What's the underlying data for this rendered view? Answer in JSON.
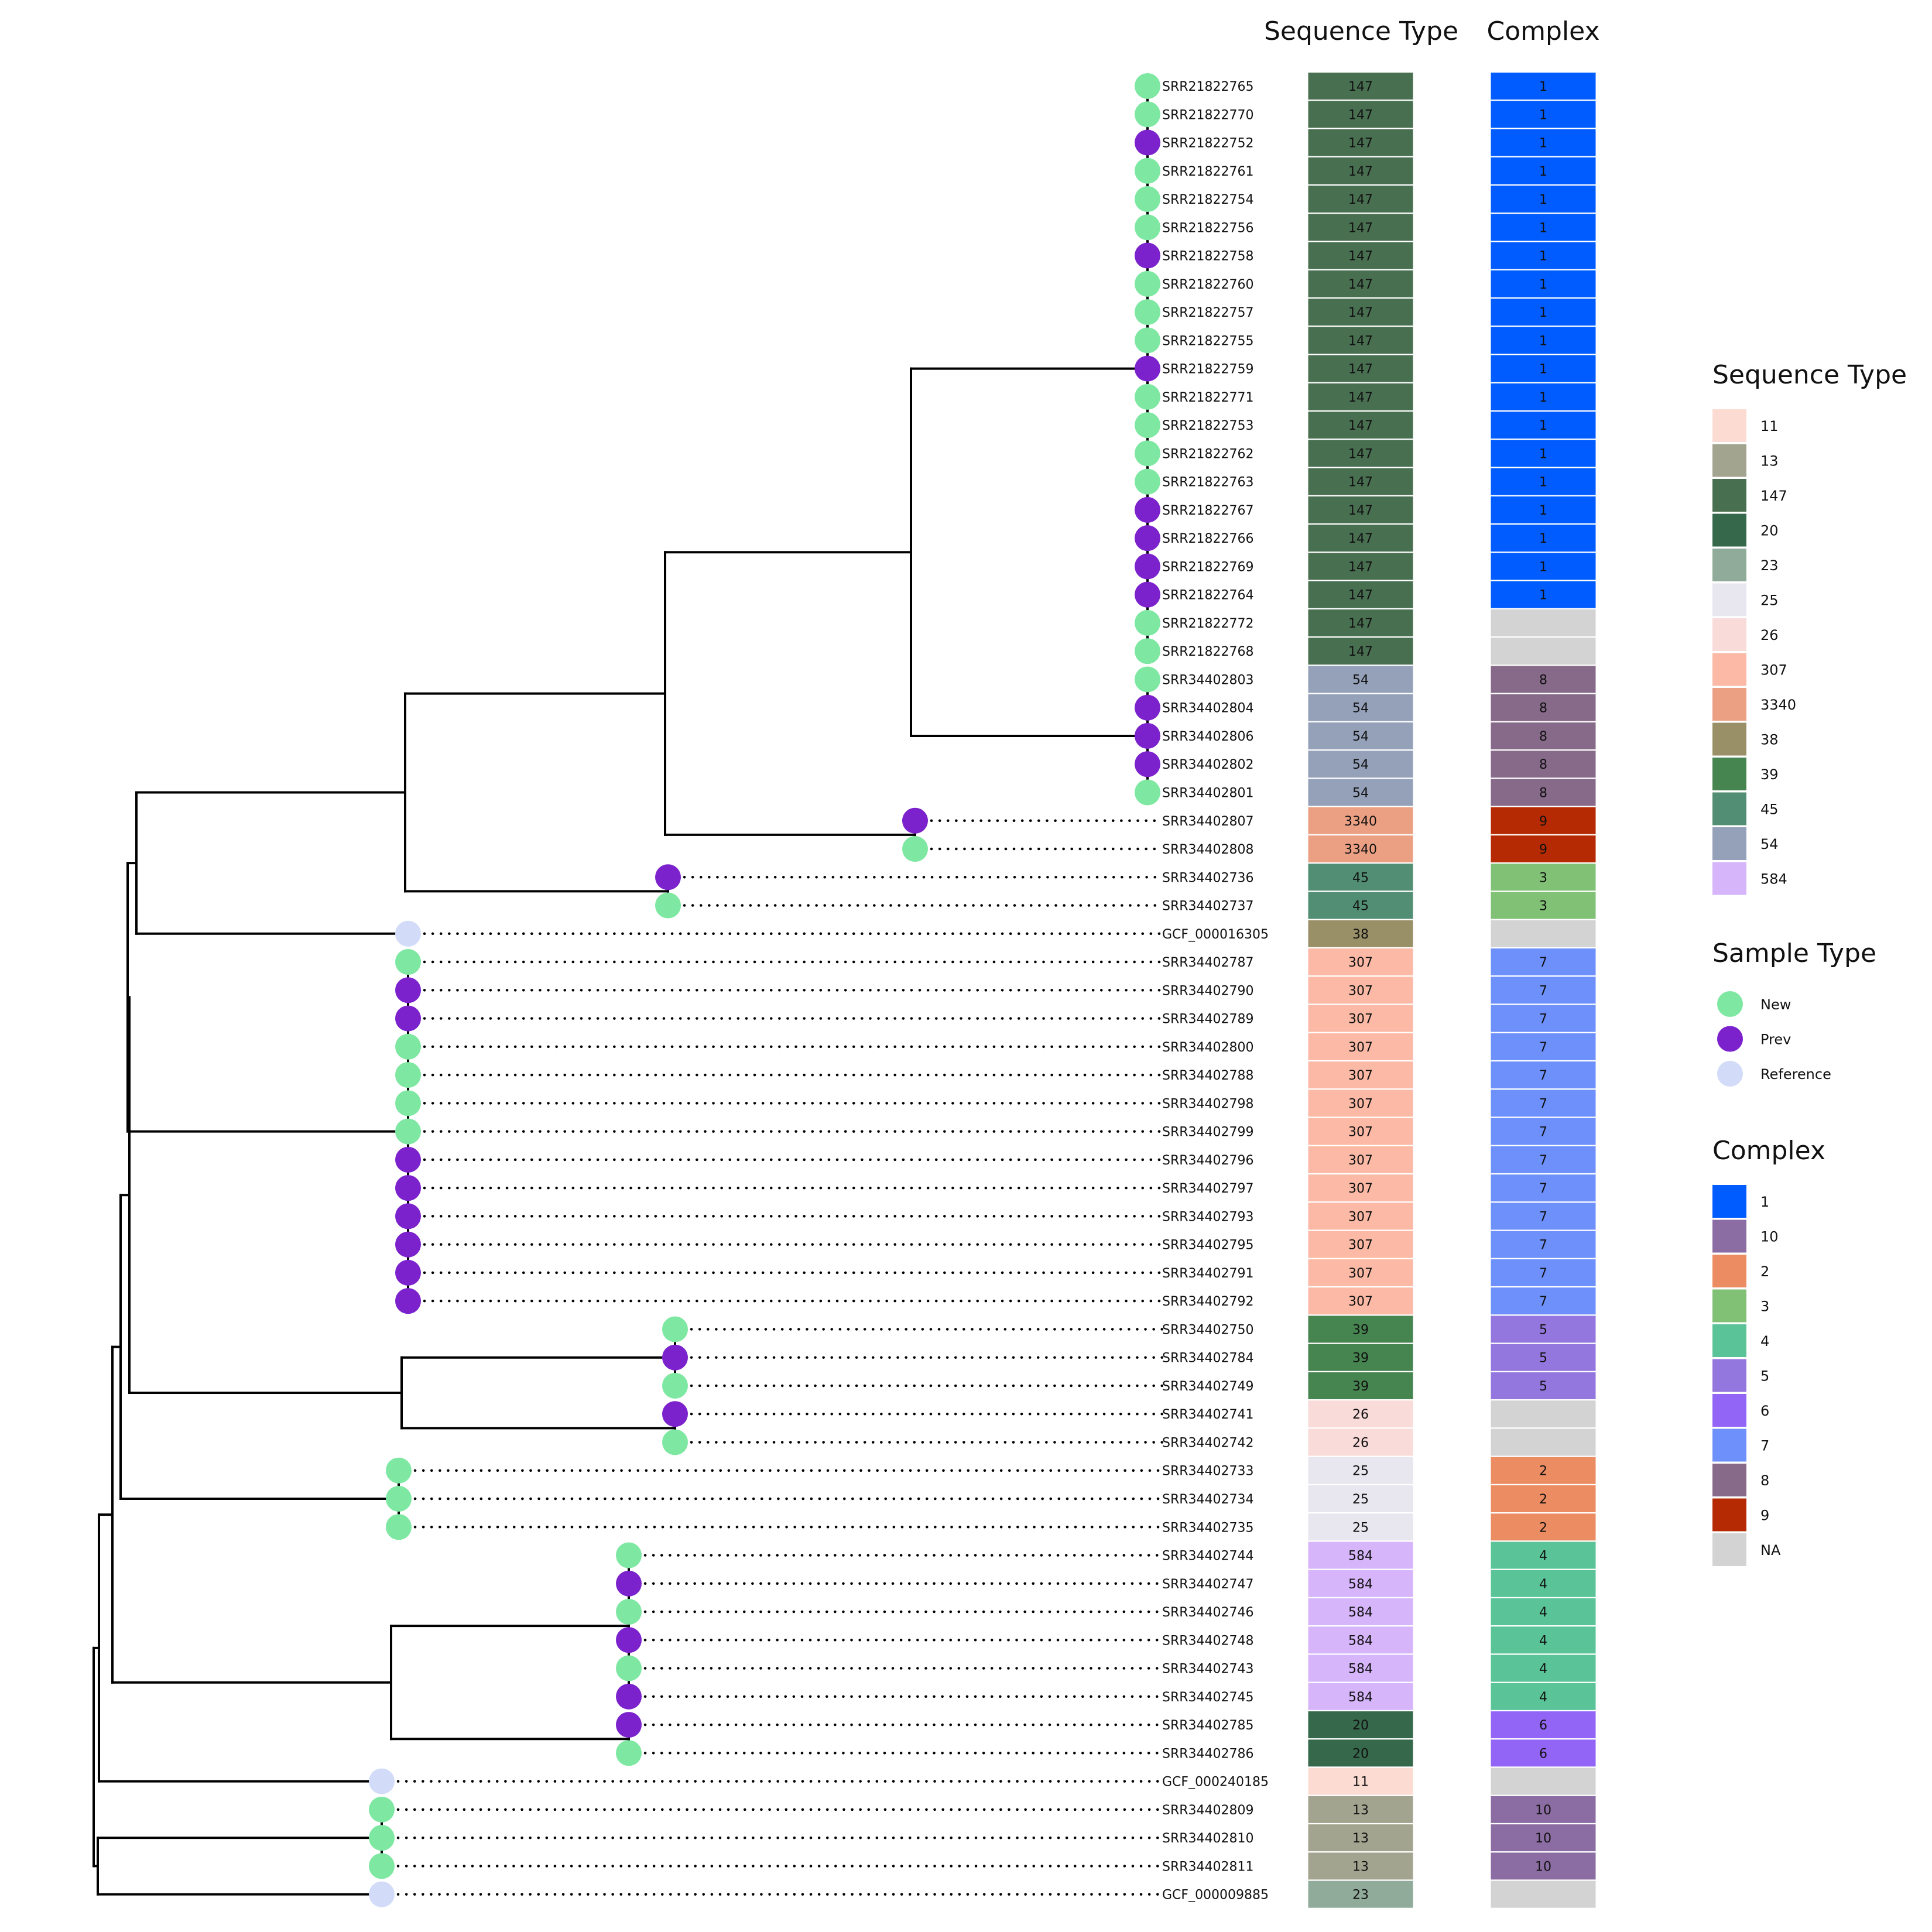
{
  "chart_data": {
    "type": "tree",
    "headers": {
      "seq_type": "Sequence Type",
      "complex": "Complex"
    },
    "colors": {
      "sample": {
        "New": "#7ee8a2",
        "Prev": "#7c22cc",
        "Reference": "#d2dcf8"
      },
      "st": {
        "11": "#fcdcd2",
        "13": "#a3a48f",
        "147": "#496f51",
        "20": "#36684c",
        "23": "#91ab9b",
        "25": "#e8e6ee",
        "26": "#f9dbda",
        "307": "#fcbaa6",
        "3340": "#eba083",
        "38": "#9a9068",
        "39": "#468450",
        "45": "#528e74",
        "54": "#94a1b9",
        "584": "#d6b5fb"
      },
      "complex": {
        "1": "#005cff",
        "10": "#8c6da3",
        "2": "#ec8c62",
        "3": "#80c175",
        "4": "#5ac498",
        "5": "#9377de",
        "6": "#9265f6",
        "7": "#6d90fb",
        "8": "#876a8a",
        "9": "#b62a03",
        "NA": "#d3d3d3"
      }
    },
    "tips": [
      {
        "id": "SRR21822765",
        "sample": "New",
        "st": "147",
        "complex": "1"
      },
      {
        "id": "SRR21822770",
        "sample": "New",
        "st": "147",
        "complex": "1"
      },
      {
        "id": "SRR21822752",
        "sample": "Prev",
        "st": "147",
        "complex": "1"
      },
      {
        "id": "SRR21822761",
        "sample": "New",
        "st": "147",
        "complex": "1"
      },
      {
        "id": "SRR21822754",
        "sample": "New",
        "st": "147",
        "complex": "1"
      },
      {
        "id": "SRR21822756",
        "sample": "New",
        "st": "147",
        "complex": "1"
      },
      {
        "id": "SRR21822758",
        "sample": "Prev",
        "st": "147",
        "complex": "1"
      },
      {
        "id": "SRR21822760",
        "sample": "New",
        "st": "147",
        "complex": "1"
      },
      {
        "id": "SRR21822757",
        "sample": "New",
        "st": "147",
        "complex": "1"
      },
      {
        "id": "SRR21822755",
        "sample": "New",
        "st": "147",
        "complex": "1"
      },
      {
        "id": "SRR21822759",
        "sample": "Prev",
        "st": "147",
        "complex": "1"
      },
      {
        "id": "SRR21822771",
        "sample": "New",
        "st": "147",
        "complex": "1"
      },
      {
        "id": "SRR21822753",
        "sample": "New",
        "st": "147",
        "complex": "1"
      },
      {
        "id": "SRR21822762",
        "sample": "New",
        "st": "147",
        "complex": "1"
      },
      {
        "id": "SRR21822763",
        "sample": "New",
        "st": "147",
        "complex": "1"
      },
      {
        "id": "SRR21822767",
        "sample": "Prev",
        "st": "147",
        "complex": "1"
      },
      {
        "id": "SRR21822766",
        "sample": "Prev",
        "st": "147",
        "complex": "1"
      },
      {
        "id": "SRR21822769",
        "sample": "Prev",
        "st": "147",
        "complex": "1"
      },
      {
        "id": "SRR21822764",
        "sample": "Prev",
        "st": "147",
        "complex": "1"
      },
      {
        "id": "SRR21822772",
        "sample": "New",
        "st": "147",
        "complex": "NA"
      },
      {
        "id": "SRR21822768",
        "sample": "New",
        "st": "147",
        "complex": "NA"
      },
      {
        "id": "SRR34402803",
        "sample": "New",
        "st": "54",
        "complex": "8"
      },
      {
        "id": "SRR34402804",
        "sample": "Prev",
        "st": "54",
        "complex": "8"
      },
      {
        "id": "SRR34402806",
        "sample": "Prev",
        "st": "54",
        "complex": "8"
      },
      {
        "id": "SRR34402802",
        "sample": "Prev",
        "st": "54",
        "complex": "8"
      },
      {
        "id": "SRR34402801",
        "sample": "New",
        "st": "54",
        "complex": "8"
      },
      {
        "id": "SRR34402807",
        "sample": "Prev",
        "st": "3340",
        "complex": "9"
      },
      {
        "id": "SRR34402808",
        "sample": "New",
        "st": "3340",
        "complex": "9"
      },
      {
        "id": "SRR34402736",
        "sample": "Prev",
        "st": "45",
        "complex": "3"
      },
      {
        "id": "SRR34402737",
        "sample": "New",
        "st": "45",
        "complex": "3"
      },
      {
        "id": "GCF_000016305",
        "sample": "Reference",
        "st": "38",
        "complex": "NA"
      },
      {
        "id": "SRR34402787",
        "sample": "New",
        "st": "307",
        "complex": "7"
      },
      {
        "id": "SRR34402790",
        "sample": "Prev",
        "st": "307",
        "complex": "7"
      },
      {
        "id": "SRR34402789",
        "sample": "Prev",
        "st": "307",
        "complex": "7"
      },
      {
        "id": "SRR34402800",
        "sample": "New",
        "st": "307",
        "complex": "7"
      },
      {
        "id": "SRR34402788",
        "sample": "New",
        "st": "307",
        "complex": "7"
      },
      {
        "id": "SRR34402798",
        "sample": "New",
        "st": "307",
        "complex": "7"
      },
      {
        "id": "SRR34402799",
        "sample": "New",
        "st": "307",
        "complex": "7"
      },
      {
        "id": "SRR34402796",
        "sample": "Prev",
        "st": "307",
        "complex": "7"
      },
      {
        "id": "SRR34402797",
        "sample": "Prev",
        "st": "307",
        "complex": "7"
      },
      {
        "id": "SRR34402793",
        "sample": "Prev",
        "st": "307",
        "complex": "7"
      },
      {
        "id": "SRR34402795",
        "sample": "Prev",
        "st": "307",
        "complex": "7"
      },
      {
        "id": "SRR34402791",
        "sample": "Prev",
        "st": "307",
        "complex": "7"
      },
      {
        "id": "SRR34402792",
        "sample": "Prev",
        "st": "307",
        "complex": "7"
      },
      {
        "id": "SRR34402750",
        "sample": "New",
        "st": "39",
        "complex": "5"
      },
      {
        "id": "SRR34402784",
        "sample": "Prev",
        "st": "39",
        "complex": "5"
      },
      {
        "id": "SRR34402749",
        "sample": "New",
        "st": "39",
        "complex": "5"
      },
      {
        "id": "SRR34402741",
        "sample": "Prev",
        "st": "26",
        "complex": "NA"
      },
      {
        "id": "SRR34402742",
        "sample": "New",
        "st": "26",
        "complex": "NA"
      },
      {
        "id": "SRR34402733",
        "sample": "New",
        "st": "25",
        "complex": "2"
      },
      {
        "id": "SRR34402734",
        "sample": "New",
        "st": "25",
        "complex": "2"
      },
      {
        "id": "SRR34402735",
        "sample": "New",
        "st": "25",
        "complex": "2"
      },
      {
        "id": "SRR34402744",
        "sample": "New",
        "st": "584",
        "complex": "4"
      },
      {
        "id": "SRR34402747",
        "sample": "Prev",
        "st": "584",
        "complex": "4"
      },
      {
        "id": "SRR34402746",
        "sample": "New",
        "st": "584",
        "complex": "4"
      },
      {
        "id": "SRR34402748",
        "sample": "Prev",
        "st": "584",
        "complex": "4"
      },
      {
        "id": "SRR34402743",
        "sample": "New",
        "st": "584",
        "complex": "4"
      },
      {
        "id": "SRR34402745",
        "sample": "Prev",
        "st": "584",
        "complex": "4"
      },
      {
        "id": "SRR34402785",
        "sample": "Prev",
        "st": "20",
        "complex": "6"
      },
      {
        "id": "SRR34402786",
        "sample": "New",
        "st": "20",
        "complex": "6"
      },
      {
        "id": "GCF_000240185",
        "sample": "Reference",
        "st": "11",
        "complex": "NA"
      },
      {
        "id": "SRR34402809",
        "sample": "New",
        "st": "13",
        "complex": "10"
      },
      {
        "id": "SRR34402810",
        "sample": "New",
        "st": "13",
        "complex": "10"
      },
      {
        "id": "SRR34402811",
        "sample": "New",
        "st": "13",
        "complex": "10"
      },
      {
        "id": "GCF_000009885",
        "sample": "Reference",
        "st": "23",
        "complex": "NA"
      }
    ],
    "legends": [
      {
        "key": "st",
        "title": "Sequence Type",
        "shape": "square",
        "items": [
          "11",
          "13",
          "147",
          "20",
          "23",
          "25",
          "26",
          "307",
          "3340",
          "38",
          "39",
          "45",
          "54",
          "584"
        ]
      },
      {
        "key": "sample",
        "title": "Sample Type",
        "shape": "circle",
        "items": [
          "New",
          "Prev",
          "Reference"
        ]
      },
      {
        "key": "complex",
        "title": "Complex",
        "shape": "square",
        "items": [
          "1",
          "10",
          "2",
          "3",
          "4",
          "5",
          "6",
          "7",
          "8",
          "9",
          "NA"
        ]
      }
    ]
  }
}
